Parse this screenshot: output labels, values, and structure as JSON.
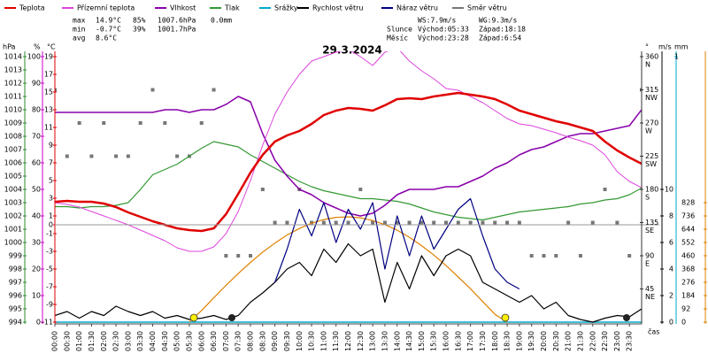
{
  "chart_data": {
    "type": "line",
    "title": "29.3.2024",
    "x_label": "čas",
    "xlim": [
      0,
      24
    ],
    "x": [
      0,
      0.5,
      1,
      1.5,
      2,
      2.5,
      3,
      3.5,
      4,
      4.5,
      5,
      5.5,
      6,
      6.5,
      7,
      7.5,
      8,
      8.5,
      9,
      9.5,
      10,
      10.5,
      11,
      11.5,
      12,
      12.5,
      13,
      13.5,
      14,
      14.5,
      15,
      15.5,
      16,
      16.5,
      17,
      17.5,
      18,
      18.5,
      19,
      19.5,
      20,
      20.5,
      21,
      21.5,
      22,
      22.5,
      23,
      23.5,
      24
    ],
    "xticks": [
      {
        "value": 0,
        "label": "00:00"
      },
      {
        "value": 0.5,
        "label": "00:30"
      },
      {
        "value": 1,
        "label": "01:00"
      },
      {
        "value": 1.5,
        "label": "01:30"
      },
      {
        "value": 2,
        "label": "02:00"
      },
      {
        "value": 2.5,
        "label": "02:30"
      },
      {
        "value": 3,
        "label": "03:00"
      },
      {
        "value": 3.5,
        "label": "03:30"
      },
      {
        "value": 4,
        "label": "04:00"
      },
      {
        "value": 4.5,
        "label": "04:30"
      },
      {
        "value": 5,
        "label": "05:00"
      },
      {
        "value": 5.5,
        "label": "05:30"
      },
      {
        "value": 6,
        "label": "06:00"
      },
      {
        "value": 6.5,
        "label": "06:30"
      },
      {
        "value": 7,
        "label": "07:00"
      },
      {
        "value": 7.5,
        "label": "07:30"
      },
      {
        "value": 8,
        "label": "08:00"
      },
      {
        "value": 8.5,
        "label": "08:30"
      },
      {
        "value": 9,
        "label": "09:00"
      },
      {
        "value": 9.5,
        "label": "09:30"
      },
      {
        "value": 10,
        "label": "10:00"
      },
      {
        "value": 10.5,
        "label": "10:30"
      },
      {
        "value": 11,
        "label": "11:00"
      },
      {
        "value": 11.5,
        "label": "11:30"
      },
      {
        "value": 12,
        "label": "12:00"
      },
      {
        "value": 12.5,
        "label": "12:30"
      },
      {
        "value": 13,
        "label": "13:00"
      },
      {
        "value": 13.5,
        "label": "13:30"
      },
      {
        "value": 14,
        "label": "14:00"
      },
      {
        "value": 14.5,
        "label": "14:30"
      },
      {
        "value": 15,
        "label": "15:00"
      },
      {
        "value": 15.5,
        "label": "15:30"
      },
      {
        "value": 16,
        "label": "16:00"
      },
      {
        "value": 16.5,
        "label": "16:30"
      },
      {
        "value": 17,
        "label": "17:00"
      },
      {
        "value": 17.5,
        "label": "17:30"
      },
      {
        "value": 18,
        "label": "18:00"
      },
      {
        "value": 18.5,
        "label": "18:30"
      },
      {
        "value": 19,
        "label": "19:00"
      },
      {
        "value": 19.5,
        "label": "19:30"
      },
      {
        "value": 20,
        "label": "20:00"
      },
      {
        "value": 20.5,
        "label": "20:30"
      },
      {
        "value": 21,
        "label": "21:00"
      },
      {
        "value": 21.5,
        "label": "21:30"
      },
      {
        "value": 22,
        "label": "22:00"
      },
      {
        "value": 22.5,
        "label": "22:30"
      },
      {
        "value": 23,
        "label": "23:00"
      },
      {
        "value": 23.5,
        "label": "23:30"
      }
    ],
    "zero_line": true,
    "axes": [
      {
        "label": "hPa",
        "color": "#2e8b2e",
        "lim": [
          994,
          1014
        ],
        "ticks": [
          994,
          995,
          996,
          997,
          998,
          999,
          1000,
          1001,
          1002,
          1003,
          1004,
          1005,
          1006,
          1007,
          1008,
          1009,
          1010,
          1011,
          1012,
          1013,
          1014
        ]
      },
      {
        "label": "%",
        "color": "#cc00cc",
        "lim": [
          0,
          100
        ],
        "ticks": [
          0,
          10,
          20,
          30,
          40,
          50,
          60,
          70,
          80,
          90,
          100
        ]
      },
      {
        "label": "°C",
        "color": "#dd0000",
        "lim": [
          -11,
          19
        ],
        "ticks": [
          -11,
          -9,
          -7,
          -5,
          -3,
          -1,
          0,
          1,
          3,
          5,
          7,
          9,
          11,
          13,
          15,
          17,
          19
        ]
      },
      {
        "label": "°",
        "color": "#333333",
        "lim": [
          0,
          360
        ],
        "ticks": [
          {
            "value": 45,
            "label": "45",
            "dir": "NE"
          },
          {
            "value": 90,
            "label": "90",
            "dir": "E"
          },
          {
            "value": 135,
            "label": "135",
            "dir": "SE"
          },
          {
            "value": 180,
            "label": "180",
            "dir": "S"
          },
          {
            "value": 225,
            "label": "225",
            "dir": "SW"
          },
          {
            "value": 270,
            "label": "270",
            "dir": "W"
          },
          {
            "value": 315,
            "label": "315",
            "dir": "NW"
          },
          {
            "value": 360,
            "label": "360",
            "dir": "N"
          }
        ]
      },
      {
        "label": "m/s",
        "color": "#000000",
        "lim": [
          0,
          20
        ],
        "ticks": [
          0,
          2,
          4,
          6,
          8,
          10
        ]
      },
      {
        "label": "mm",
        "color": "#00aacc",
        "lim": [
          0,
          1
        ],
        "ticks": [
          1
        ]
      },
      {
        "color": "#e08000",
        "lim": [
          0,
          1840
        ],
        "ticks": [
          0,
          92,
          184,
          276,
          368,
          460,
          552,
          644,
          736,
          828
        ]
      }
    ],
    "series": [
      {
        "name": "Teplota",
        "color": "#e00000",
        "axis": 2,
        "style": "line",
        "width": 2.5,
        "values": [
          2.6,
          2.7,
          2.6,
          2.6,
          2.4,
          2.0,
          1.4,
          0.9,
          0.4,
          0.0,
          -0.4,
          -0.6,
          -0.7,
          -0.4,
          1.2,
          3.5,
          5.9,
          7.9,
          9.4,
          10.1,
          10.6,
          11.4,
          12.4,
          12.9,
          13.2,
          13.1,
          12.9,
          13.5,
          14.2,
          14.3,
          14.2,
          14.5,
          14.7,
          14.9,
          14.7,
          14.5,
          14.2,
          13.6,
          12.9,
          12.5,
          12.1,
          11.7,
          11.4,
          11.0,
          10.6,
          9.4,
          8.4,
          7.6,
          6.9
        ]
      },
      {
        "name": "Přízemní teplota",
        "color": "#dd44dd",
        "axis": 2,
        "style": "line",
        "width": 1,
        "values": [
          2.5,
          2.3,
          2.0,
          1.5,
          1.0,
          0.5,
          0.0,
          -0.6,
          -1.2,
          -1.8,
          -2.6,
          -3.0,
          -3.0,
          -2.5,
          -1.0,
          1.5,
          5.0,
          9.0,
          12.5,
          15.0,
          17.0,
          18.5,
          19.0,
          19.5,
          19.8,
          19.0,
          18.0,
          19.5,
          20.0,
          18.5,
          17.4,
          16.5,
          15.4,
          15.2,
          14.5,
          13.8,
          12.9,
          12.0,
          11.4,
          11.2,
          10.8,
          10.4,
          9.9,
          9.5,
          9.0,
          7.9,
          6.0,
          4.9,
          4.2
        ]
      },
      {
        "name": "Vlhkost",
        "color": "#8800aa",
        "axis": 1,
        "style": "line",
        "width": 1.5,
        "values": [
          79,
          79,
          79,
          79,
          79,
          79,
          79,
          79,
          79,
          80,
          80,
          79,
          80,
          80,
          82,
          85,
          83,
          71,
          61,
          55,
          50,
          48,
          45,
          43,
          41,
          40,
          41,
          44,
          48,
          50,
          50,
          50,
          51,
          51,
          53,
          55,
          58,
          60,
          63,
          65,
          66,
          68,
          70,
          71,
          71,
          72,
          73,
          74,
          80
        ]
      },
      {
        "name": "Tlak",
        "color": "#339933",
        "axis": 0,
        "style": "line",
        "width": 1.2,
        "values": [
          1002.7,
          1002.7,
          1002.6,
          1002.7,
          1002.7,
          1002.8,
          1003.0,
          1004.0,
          1005.1,
          1005.5,
          1005.9,
          1006.5,
          1007.1,
          1007.6,
          1007.4,
          1007.2,
          1006.6,
          1006.1,
          1005.6,
          1005.1,
          1004.6,
          1004.2,
          1003.9,
          1003.7,
          1003.5,
          1003.3,
          1003.3,
          1003.2,
          1003.1,
          1002.9,
          1002.6,
          1002.3,
          1002.1,
          1001.9,
          1001.8,
          1001.7,
          1001.9,
          1002.1,
          1002.3,
          1002.4,
          1002.5,
          1002.6,
          1002.7,
          1002.9,
          1003.0,
          1003.2,
          1003.3,
          1003.6,
          1004.1
        ]
      },
      {
        "name": "Srážky",
        "color": "#00aacc",
        "axis": 5,
        "style": "line",
        "width": 1.5,
        "values": [
          0,
          0,
          0,
          0,
          0,
          0,
          0,
          0,
          0,
          0,
          0,
          0,
          0,
          0,
          0,
          0,
          0,
          0,
          0,
          0,
          0,
          0,
          0,
          0,
          0,
          0,
          0,
          0,
          0,
          0,
          0,
          0,
          0,
          0,
          0,
          0,
          0,
          0,
          0,
          0,
          0,
          0,
          0,
          0,
          0,
          0,
          0,
          0,
          0
        ]
      },
      {
        "color": "#e08000",
        "axis": 6,
        "style": "line",
        "width": 1.2,
        "values": [
          null,
          null,
          null,
          null,
          null,
          null,
          null,
          null,
          null,
          null,
          null,
          0,
          81,
          169,
          255,
          337,
          414,
          485,
          548,
          604,
          649,
          686,
          711,
          726,
          730,
          723,
          704,
          676,
          637,
          588,
          530,
          465,
          392,
          313,
          231,
          143,
          54,
          0,
          null,
          null,
          null,
          null,
          null,
          null,
          null,
          null,
          null,
          null,
          null
        ]
      },
      {
        "name": "Rychlost větru",
        "color": "#000000",
        "axis": 4,
        "style": "line",
        "width": 1.2,
        "values": [
          0.5,
          0.8,
          0.3,
          0.8,
          0.5,
          1.2,
          0.8,
          0.5,
          0.8,
          0.3,
          0.5,
          0.2,
          0.3,
          0.5,
          0.2,
          0.5,
          1.5,
          2.2,
          3.0,
          4.0,
          4.5,
          3.5,
          5.5,
          4.5,
          5.9,
          5.0,
          5.5,
          1.5,
          4.5,
          2.5,
          5.0,
          3.5,
          5.0,
          5.5,
          5.0,
          3.0,
          2.5,
          2.0,
          1.5,
          2.0,
          1.0,
          1.5,
          0.5,
          0.2,
          0.0,
          0.3,
          0.5,
          0.4,
          1.0
        ]
      },
      {
        "name": "Náraz větru",
        "color": "#000080",
        "axis": 4,
        "style": "line",
        "width": 1.2,
        "values": [
          null,
          null,
          null,
          null,
          null,
          null,
          null,
          null,
          null,
          null,
          null,
          null,
          null,
          null,
          null,
          null,
          null,
          null,
          3.0,
          5.5,
          8.5,
          6.5,
          9.0,
          6.0,
          8.5,
          7.0,
          9.0,
          4.0,
          8.0,
          5.0,
          8.0,
          5.5,
          7.0,
          8.5,
          9.3,
          6.5,
          4.0,
          3.0,
          2.5,
          null,
          null,
          null,
          null,
          null,
          null,
          null,
          null,
          null,
          null
        ]
      },
      {
        "name": "Směr větru",
        "color": "#777777",
        "axis": 3,
        "style": "points",
        "values": [
          315,
          225,
          270,
          225,
          270,
          225,
          225,
          270,
          315,
          270,
          225,
          225,
          270,
          315,
          90,
          90,
          90,
          180,
          135,
          135,
          180,
          135,
          135,
          135,
          135,
          180,
          135,
          135,
          135,
          135,
          135,
          135,
          135,
          135,
          135,
          135,
          135,
          135,
          135,
          90,
          90,
          90,
          135,
          90,
          135,
          180,
          135,
          90,
          315
        ]
      }
    ]
  },
  "stats": [
    [
      "max",
      "14.9°C",
      "85%",
      "1007.6hPa",
      "0.0mm"
    ],
    [
      "min",
      "-0.7°C",
      "39%",
      "1001.7hPa"
    ],
    [
      "avg",
      "8.6°C"
    ]
  ],
  "info": {
    "ws": "WS:7.9m/s",
    "wg": "WG:9.3m/s",
    "sun": {
      "label": "Slunce",
      "rise": "Východ:05:33",
      "set": "Západ:18:18"
    },
    "moon": {
      "label": "Měsíc",
      "rise": "Východ:23:28",
      "set": "Západ:6:54"
    }
  }
}
